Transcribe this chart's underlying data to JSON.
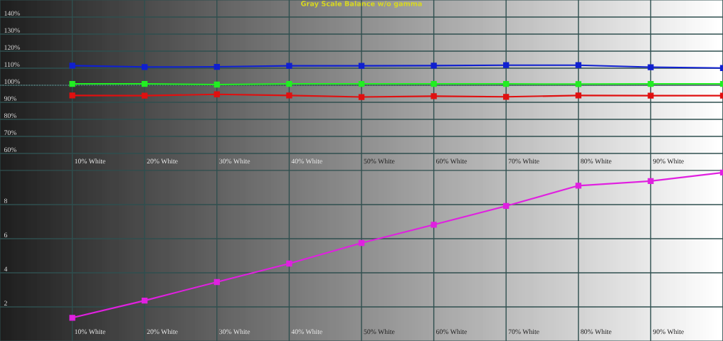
{
  "chart_data": [
    {
      "type": "line",
      "title": "Gray Scale Balance w/o gamma",
      "categories": [
        "10% White",
        "20% White",
        "30% White",
        "40% White",
        "50% White",
        "60% White",
        "70% White",
        "80% White",
        "90% White",
        null
      ],
      "series": [
        {
          "color": "#1020d0",
          "values": [
            111.5,
            110.7,
            110.8,
            111.4,
            111.4,
            111.5,
            111.8,
            111.8,
            110.6,
            110.1
          ]
        },
        {
          "color": "#22ee22",
          "values": [
            100.8,
            100.8,
            100.4,
            100.8,
            100.8,
            100.8,
            100.8,
            100.7,
            100.8,
            100.8
          ]
        },
        {
          "color": "#e01010",
          "values": [
            94.0,
            93.9,
            94.7,
            94.0,
            93.1,
            93.6,
            93.2,
            94.0,
            93.9,
            93.9
          ]
        }
      ],
      "ylim": [
        50,
        150
      ],
      "yticks": [
        {
          "value": 60,
          "label": "60%"
        },
        {
          "value": 70,
          "label": "70%"
        },
        {
          "value": 80,
          "label": "80%"
        },
        {
          "value": 90,
          "label": "90%"
        },
        {
          "value": 100,
          "label": "100%"
        },
        {
          "value": 110,
          "label": "110%"
        },
        {
          "value": 120,
          "label": "120%"
        },
        {
          "value": 130,
          "label": "130%"
        },
        {
          "value": 140,
          "label": "140%"
        }
      ],
      "ref_lines": [
        {
          "axis": "y",
          "value": 100,
          "color": "#ffffff",
          "line_style": "dotted"
        }
      ],
      "grid": true,
      "marker": "square",
      "line_style": "solid"
    },
    {
      "type": "line",
      "categories": [
        "10% White",
        "20% White",
        "30% White",
        "40% White",
        "50% White",
        "60% White",
        "70% White",
        "80% White",
        "90% White",
        null
      ],
      "series": [
        {
          "color": "#e020e0",
          "values": [
            1.36,
            2.37,
            3.46,
            4.54,
            5.75,
            6.82,
            7.92,
            9.11,
            9.38,
            9.88
          ]
        }
      ],
      "ylim": [
        0,
        10
      ],
      "yticks": [
        2,
        4,
        6,
        8
      ],
      "grid": true,
      "marker": "square",
      "line_style": "solid"
    }
  ]
}
